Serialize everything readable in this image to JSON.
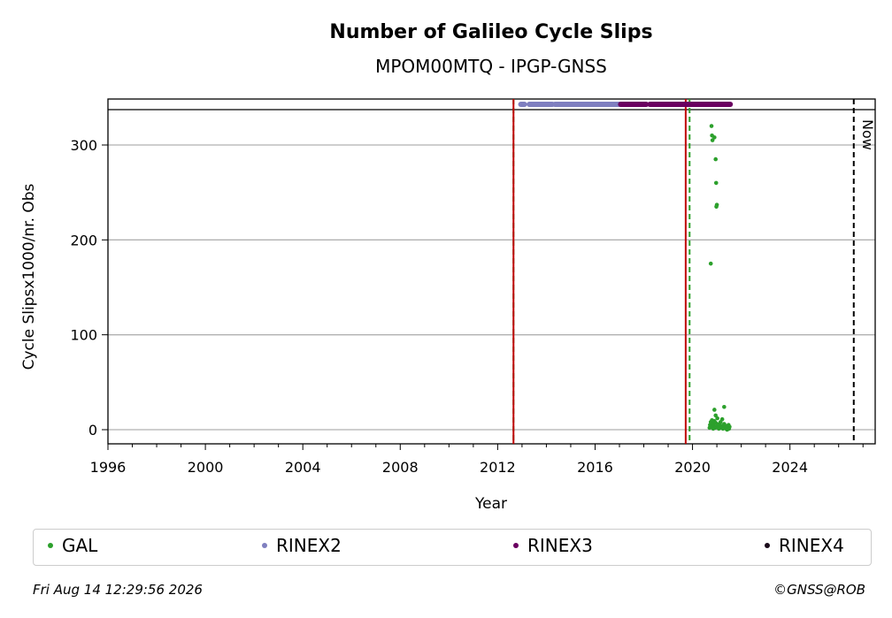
{
  "chart_data": {
    "type": "scatter",
    "title": "Number of Galileo Cycle Slips",
    "subtitle": "MPOM00MTQ - IPGP-GNSS",
    "xlabel": "Year",
    "ylabel": "Cycle Slipsx1000/nr. Obs",
    "xlim": [
      1996,
      2027.5
    ],
    "ylim": [
      -15,
      340
    ],
    "x_ticks": [
      1996,
      2000,
      2004,
      2008,
      2012,
      2016,
      2020,
      2024
    ],
    "y_ticks": [
      0,
      100,
      200,
      300
    ],
    "grid": "horizontal",
    "now_label": "Now",
    "now_year": 2026.62,
    "vertical_lines": [
      {
        "x": 2012.65,
        "color": "#2ca02c",
        "style": "dashed"
      },
      {
        "x": 2012.65,
        "color": "#c00000",
        "style": "solid"
      },
      {
        "x": 2019.72,
        "color": "#c00000",
        "style": "solid"
      },
      {
        "x": 2019.88,
        "color": "#2ca02c",
        "style": "dashed"
      },
      {
        "x": 2026.62,
        "color": "#000000",
        "style": "dashed"
      }
    ],
    "series": [
      {
        "name": "GAL",
        "color": "#2ca02c",
        "points": [
          [
            2020.75,
            175
          ],
          [
            2020.78,
            320
          ],
          [
            2020.8,
            310
          ],
          [
            2020.82,
            305
          ],
          [
            2020.9,
            308
          ],
          [
            2020.95,
            285
          ],
          [
            2020.97,
            260
          ],
          [
            2020.98,
            235
          ],
          [
            2021.0,
            237
          ],
          [
            2021.3,
            24
          ],
          [
            2020.9,
            21
          ],
          [
            2020.95,
            15
          ],
          [
            2020.7,
            2
          ],
          [
            2020.72,
            5
          ],
          [
            2020.75,
            8
          ],
          [
            2020.78,
            3
          ],
          [
            2020.8,
            10
          ],
          [
            2020.83,
            6
          ],
          [
            2020.85,
            1
          ],
          [
            2020.88,
            4
          ],
          [
            2020.9,
            9
          ],
          [
            2020.93,
            2
          ],
          [
            2020.96,
            7
          ],
          [
            2021.0,
            3
          ],
          [
            2021.02,
            12
          ],
          [
            2021.05,
            5
          ],
          [
            2021.08,
            1
          ],
          [
            2021.1,
            6
          ],
          [
            2021.12,
            3
          ],
          [
            2021.15,
            8
          ],
          [
            2021.18,
            2
          ],
          [
            2021.2,
            4
          ],
          [
            2021.22,
            11
          ],
          [
            2021.25,
            1
          ],
          [
            2021.28,
            3
          ],
          [
            2021.3,
            6
          ],
          [
            2021.33,
            2
          ],
          [
            2021.36,
            4
          ],
          [
            2021.38,
            1
          ],
          [
            2021.4,
            3
          ],
          [
            2021.42,
            0
          ],
          [
            2021.45,
            2
          ],
          [
            2021.48,
            5
          ],
          [
            2021.5,
            1
          ],
          [
            2021.52,
            3
          ]
        ]
      },
      {
        "name": "RINEX2",
        "color": "#7f7fbf",
        "y": 343,
        "ranges": [
          [
            2012.95,
            2013.1
          ],
          [
            2013.3,
            2014.25
          ],
          [
            2014.35,
            2017.2
          ]
        ]
      },
      {
        "name": "RINEX3",
        "color": "#6a0060",
        "y": 343,
        "ranges": [
          [
            2017.05,
            2018.1
          ],
          [
            2018.25,
            2021.55
          ]
        ]
      },
      {
        "name": "RINEX4",
        "color": "#1a0a1a",
        "y": 343,
        "ranges": []
      }
    ]
  },
  "legend": {
    "gal": "GAL",
    "rinex2": "RINEX2",
    "rinex3": "RINEX3",
    "rinex4": "RINEX4"
  },
  "colors": {
    "gal": "#2ca02c",
    "rinex2": "#7f7fbf",
    "rinex3": "#6a0060",
    "rinex4": "#1a0a1a"
  },
  "footer": {
    "timestamp": "Fri Aug 14 12:29:56 2026",
    "credit": "©GNSS@ROB"
  }
}
